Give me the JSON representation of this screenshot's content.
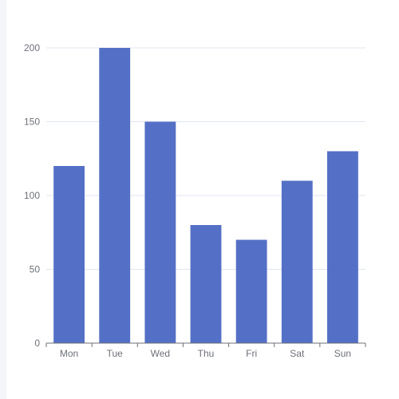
{
  "chart_data": {
    "type": "bar",
    "categories": [
      "Mon",
      "Tue",
      "Wed",
      "Thu",
      "Fri",
      "Sat",
      "Sun"
    ],
    "values": [
      120,
      200,
      150,
      80,
      70,
      110,
      130
    ],
    "ylim": [
      0,
      200
    ],
    "yticks": [
      0,
      50,
      100,
      150,
      200
    ],
    "grid": true,
    "bar_color": "#5470c6",
    "grid_color": "#e0e6f1",
    "axis_color": "#6e7079",
    "label_color": "#6e7079"
  }
}
